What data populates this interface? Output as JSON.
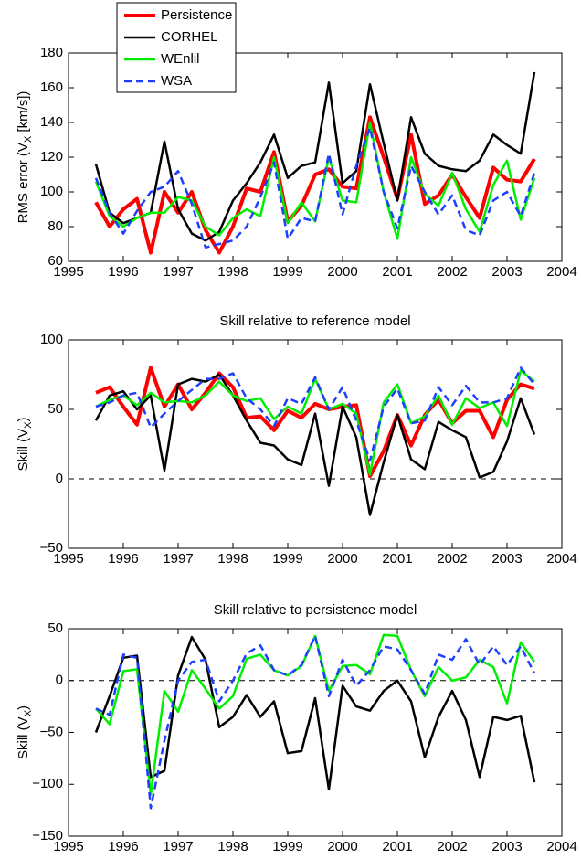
{
  "chart_data": [
    {
      "type": "line",
      "ylabel": [
        "RMS error (V",
        "X",
        " [km/s])"
      ],
      "legend": "top-left",
      "x": [
        1995.5,
        1995.75,
        1996,
        1996.25,
        1996.5,
        1996.75,
        1997,
        1997.25,
        1997.5,
        1997.75,
        1998,
        1998.25,
        1998.5,
        1998.75,
        1999,
        1999.25,
        1999.5,
        1999.75,
        2000,
        2000.25,
        2000.5,
        2000.75,
        2001,
        2001.25,
        2001.5,
        2001.75,
        2002,
        2002.25,
        2002.5,
        2002.75,
        2003,
        2003.25,
        2003.5
      ],
      "xlim": [
        1995,
        2004
      ],
      "xticks": [
        1995,
        1996,
        1997,
        1998,
        1999,
        2000,
        2001,
        2002,
        2003,
        2004
      ],
      "ylim": [
        60,
        180
      ],
      "yticks": [
        60,
        80,
        100,
        120,
        140,
        160,
        180
      ],
      "series": [
        {
          "name": "Persistence",
          "color": "#ff0000",
          "linewidth": 4,
          "dashed": false,
          "values": [
            94,
            80,
            90,
            96,
            65,
            100,
            88,
            100,
            78,
            65,
            80,
            102,
            100,
            123,
            83,
            92,
            110,
            113,
            103,
            102,
            143,
            120,
            96,
            133,
            93,
            98,
            110,
            97,
            85,
            114,
            107,
            106,
            119
          ]
        },
        {
          "name": "CORHEL",
          "color": "#000000",
          "linewidth": 2.5,
          "dashed": false,
          "values": [
            116,
            88,
            82,
            85,
            88,
            129,
            90,
            76,
            72,
            77,
            95,
            105,
            117,
            133,
            108,
            115,
            117,
            163,
            105,
            112,
            162,
            128,
            95,
            143,
            122,
            115,
            113,
            112,
            118,
            133,
            127,
            122,
            169
          ]
        },
        {
          "name": "WEnlil",
          "color": "#00ee00",
          "linewidth": 2.5,
          "dashed": false,
          "values": [
            106,
            86,
            80,
            85,
            88,
            88,
            97,
            95,
            80,
            75,
            85,
            90,
            86,
            120,
            82,
            94,
            83,
            120,
            95,
            94,
            140,
            100,
            73,
            120,
            99,
            92,
            111,
            90,
            77,
            104,
            118,
            84,
            108
          ]
        },
        {
          "name": "WSA",
          "color": "#1f3fff",
          "linewidth": 2.5,
          "dashed": true,
          "values": [
            108,
            88,
            76,
            89,
            100,
            103,
            112,
            93,
            68,
            70,
            72,
            80,
            97,
            117,
            73,
            85,
            83,
            122,
            87,
            115,
            137,
            100,
            79,
            115,
            100,
            87,
            98,
            78,
            75,
            95,
            100,
            86,
            111
          ]
        }
      ]
    },
    {
      "type": "line",
      "title": "Skill relative to reference model",
      "ylabel": [
        "Skill (V",
        "X",
        ")"
      ],
      "reference_line": 0,
      "x": [
        1995.5,
        1995.75,
        1996,
        1996.25,
        1996.5,
        1996.75,
        1997,
        1997.25,
        1997.5,
        1997.75,
        1998,
        1998.25,
        1998.5,
        1998.75,
        1999,
        1999.25,
        1999.5,
        1999.75,
        2000,
        2000.25,
        2000.5,
        2000.75,
        2001,
        2001.25,
        2001.5,
        2001.75,
        2002,
        2002.25,
        2002.5,
        2002.75,
        2003,
        2003.25,
        2003.5
      ],
      "xlim": [
        1995,
        2004
      ],
      "xticks": [
        1995,
        1996,
        1997,
        1998,
        1999,
        2000,
        2001,
        2002,
        2003,
        2004
      ],
      "ylim": [
        -50,
        100
      ],
      "yticks": [
        {
          "value": -50,
          "label": "−50"
        },
        0,
        50,
        100
      ],
      "series": [
        {
          "name": "Persistence",
          "color": "#ff0000",
          "linewidth": 4,
          "dashed": false,
          "values": [
            62,
            66,
            52,
            39,
            80,
            52,
            68,
            50,
            62,
            76,
            66,
            44,
            45,
            35,
            49,
            44,
            54,
            50,
            52,
            53,
            2,
            20,
            46,
            24,
            46,
            57,
            40,
            49,
            49,
            30,
            57,
            68,
            65
          ]
        },
        {
          "name": "CORHEL",
          "color": "#000000",
          "linewidth": 2.5,
          "dashed": false,
          "values": [
            42,
            60,
            63,
            50,
            60,
            6,
            68,
            72,
            70,
            75,
            60,
            42,
            26,
            24,
            14,
            10,
            47,
            -5,
            52,
            30,
            -26,
            12,
            46,
            14,
            7,
            41,
            35,
            30,
            1,
            5,
            27,
            58,
            32
          ]
        },
        {
          "name": "WEnlil",
          "color": "#00ee00",
          "linewidth": 2.5,
          "dashed": false,
          "values": [
            52,
            57,
            60,
            53,
            62,
            55,
            56,
            55,
            60,
            70,
            60,
            56,
            58,
            43,
            52,
            47,
            72,
            50,
            54,
            47,
            3,
            55,
            68,
            40,
            45,
            60,
            39,
            58,
            51,
            55,
            38,
            78,
            70
          ]
        },
        {
          "name": "WSA",
          "color": "#1f3fff",
          "linewidth": 2.5,
          "dashed": true,
          "values": [
            52,
            55,
            60,
            62,
            37,
            47,
            56,
            64,
            72,
            72,
            76,
            58,
            50,
            38,
            58,
            54,
            73,
            50,
            66,
            42,
            13,
            52,
            65,
            40,
            42,
            66,
            53,
            67,
            55,
            55,
            58,
            80,
            68
          ]
        }
      ]
    },
    {
      "type": "line",
      "title": "Skill relative to persistence model",
      "ylabel": [
        "Skill (V",
        "X",
        ")"
      ],
      "reference_line": 0,
      "x": [
        1995.5,
        1995.75,
        1996,
        1996.25,
        1996.5,
        1996.75,
        1997,
        1997.25,
        1997.5,
        1997.75,
        1998,
        1998.25,
        1998.5,
        1998.75,
        1999,
        1999.25,
        1999.5,
        1999.75,
        2000,
        2000.25,
        2000.5,
        2000.75,
        2001,
        2001.25,
        2001.5,
        2001.75,
        2002,
        2002.25,
        2002.5,
        2002.75,
        2003,
        2003.25,
        2003.5
      ],
      "xlim": [
        1995,
        2004
      ],
      "xticks": [
        1995,
        1996,
        1997,
        1998,
        1999,
        2000,
        2001,
        2002,
        2003,
        2004
      ],
      "ylim": [
        -150,
        50
      ],
      "yticks": [
        {
          "value": -150,
          "label": "−150"
        },
        {
          "value": -100,
          "label": "−100"
        },
        {
          "value": -50,
          "label": "−50"
        },
        0,
        50
      ],
      "series": [
        {
          "name": "CORHEL",
          "color": "#000000",
          "linewidth": 2.5,
          "dashed": false,
          "values": [
            -50,
            -15,
            22,
            24,
            -93,
            -87,
            5,
            42,
            20,
            -45,
            -35,
            -14,
            -35,
            -20,
            -70,
            -68,
            -17,
            -105,
            -5,
            -25,
            -29,
            -10,
            0,
            -20,
            -74,
            -35,
            -10,
            -38,
            -93,
            -35,
            -38,
            -34,
            -98
          ]
        },
        {
          "name": "WEnlil",
          "color": "#00ee00",
          "linewidth": 2.5,
          "dashed": false,
          "values": [
            -27,
            -42,
            9,
            11,
            -110,
            -10,
            -30,
            10,
            -8,
            -27,
            -15,
            21,
            25,
            10,
            5,
            14,
            43,
            -10,
            14,
            15,
            6,
            44,
            43,
            10,
            -15,
            13,
            0,
            3,
            20,
            13,
            -22,
            37,
            18
          ]
        },
        {
          "name": "WSA",
          "color": "#1f3fff",
          "linewidth": 2.5,
          "dashed": true,
          "values": [
            -27,
            -33,
            25,
            22,
            -123,
            -58,
            0,
            18,
            20,
            -20,
            0,
            26,
            34,
            10,
            5,
            15,
            43,
            -15,
            20,
            -5,
            10,
            33,
            30,
            10,
            -13,
            25,
            20,
            40,
            15,
            33,
            15,
            33,
            7
          ]
        }
      ]
    }
  ]
}
